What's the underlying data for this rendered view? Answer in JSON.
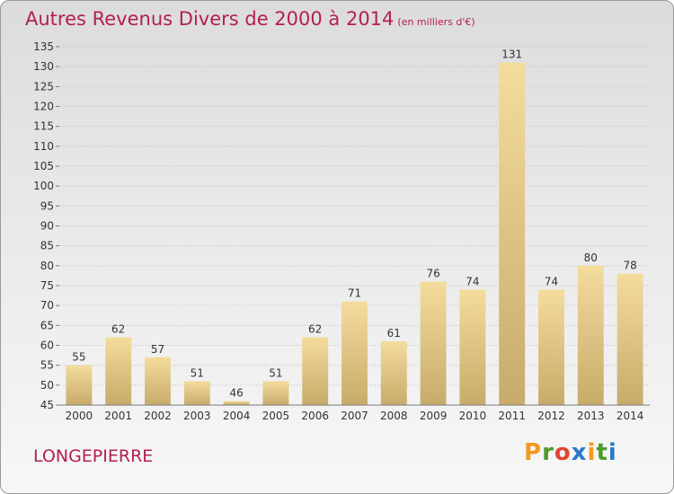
{
  "title": {
    "main": "Autres Revenus Divers de 2000 à 2014",
    "unit": "(en milliers d'€)"
  },
  "location": "LONGEPIERRE",
  "brand": {
    "letters": [
      "P",
      "r",
      "o",
      "x",
      "i",
      "t",
      "i"
    ],
    "colors": [
      "#f29a1d",
      "#4f9a2c",
      "#e0452e",
      "#2b78c8",
      "#f29a1d",
      "#4f9a2c",
      "#2b78c8"
    ]
  },
  "colors": {
    "accent": "#b31f4f",
    "bar_light": "#f4dc9c",
    "bar_dark": "#c7ab6b",
    "grid": "#bfbfbf"
  },
  "chart_data": {
    "type": "bar",
    "title": "Autres Revenus Divers de 2000 à 2014",
    "categories": [
      "2000",
      "2001",
      "2002",
      "2003",
      "2004",
      "2005",
      "2006",
      "2007",
      "2008",
      "2009",
      "2010",
      "2011",
      "2012",
      "2013",
      "2014"
    ],
    "values": [
      55,
      62,
      57,
      51,
      46,
      51,
      62,
      71,
      61,
      76,
      74,
      131,
      74,
      80,
      78
    ],
    "ylim": [
      45,
      135
    ],
    "yticks": [
      45,
      50,
      55,
      60,
      65,
      70,
      75,
      80,
      85,
      90,
      95,
      100,
      105,
      110,
      115,
      120,
      125,
      130,
      135
    ],
    "grid": true,
    "data_labels": true
  }
}
